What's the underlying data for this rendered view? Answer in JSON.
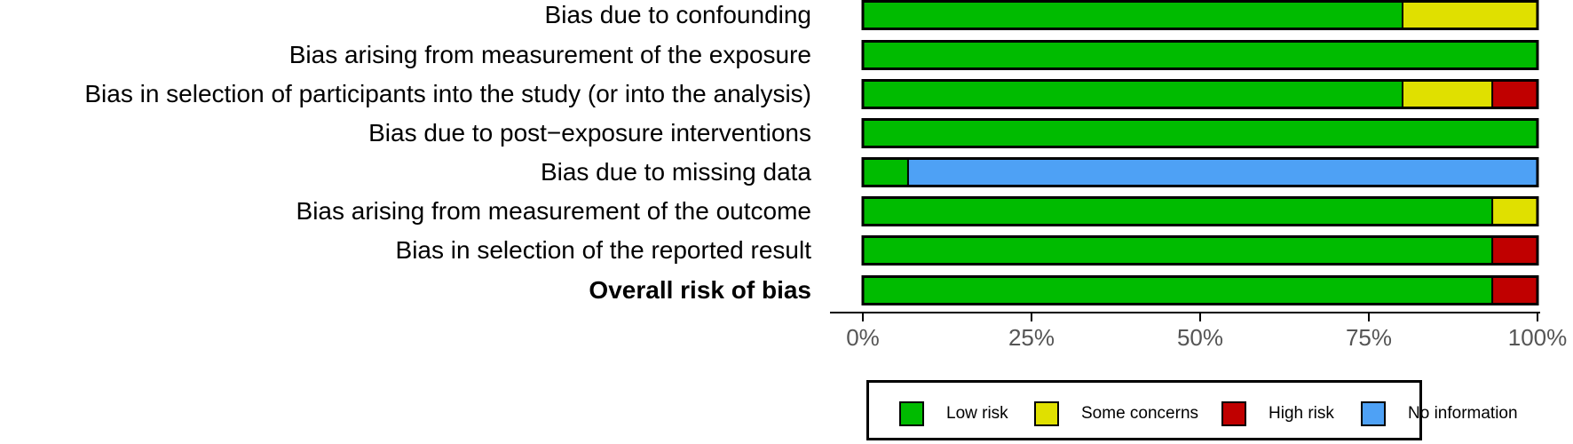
{
  "chart_data": {
    "type": "bar",
    "orientation": "horizontal",
    "stacked": true,
    "categories": [
      "Bias due to confounding",
      "Bias arising from measurement of the exposure",
      "Bias in selection of participants into the study (or into the analysis)",
      "Bias due to post−exposure interventions",
      "Bias due to missing data",
      "Bias arising from measurement of the outcome",
      "Bias in selection of the reported result",
      "Overall risk of bias"
    ],
    "bold_categories": [
      "Overall risk of bias"
    ],
    "series": [
      {
        "name": "Low risk",
        "color": "#00BB00",
        "values": [
          80,
          100,
          80,
          100,
          6.7,
          93.3,
          93.3,
          93.3
        ]
      },
      {
        "name": "Some concerns",
        "color": "#E0E000",
        "values": [
          20,
          0,
          13.3,
          0,
          0,
          6.7,
          0,
          0
        ]
      },
      {
        "name": "High risk",
        "color": "#C00000",
        "values": [
          0,
          0,
          6.7,
          0,
          0,
          0,
          6.7,
          6.7
        ]
      },
      {
        "name": "No information",
        "color": "#4EA1F5",
        "values": [
          0,
          0,
          0,
          0,
          93.3,
          0,
          0,
          0
        ]
      }
    ],
    "xticks": [
      0,
      25,
      50,
      75,
      100
    ],
    "xtick_labels": [
      "0%",
      "25%",
      "50%",
      "75%",
      "100%"
    ],
    "xlim": [
      0,
      100
    ],
    "title": "",
    "xlabel": "",
    "ylabel": "",
    "legend_position": "bottom"
  }
}
